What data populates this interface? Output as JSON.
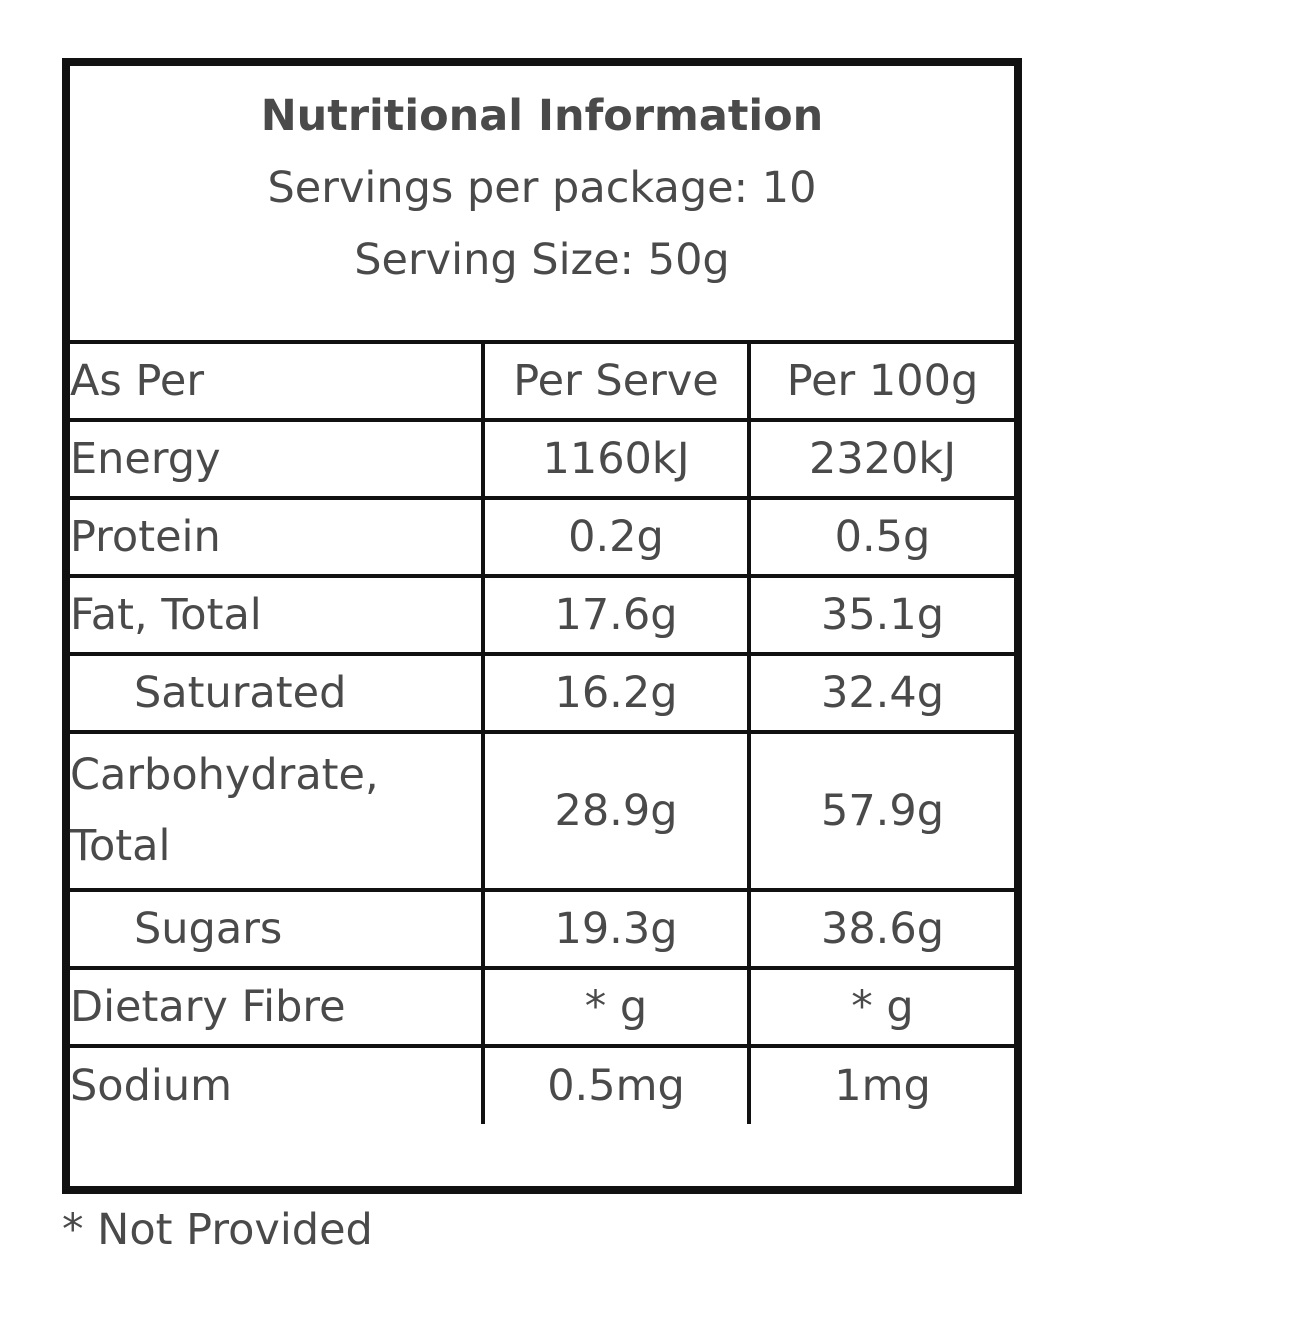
{
  "header": {
    "title": "Nutritional Information",
    "servings_per_package": "Servings per package: 10",
    "serving_size": "Serving Size: 50g"
  },
  "table": {
    "columns": [
      "As Per",
      "Per Serve",
      "Per 100g"
    ],
    "rows": [
      {
        "label": "Energy",
        "per_serve": "1160kJ",
        "per_100g": "2320kJ"
      },
      {
        "label": "Protein",
        "per_serve": "0.2g",
        "per_100g": "0.5g"
      },
      {
        "label": "Fat, Total",
        "per_serve": "17.6g",
        "per_100g": "35.1g"
      },
      {
        "label": "Saturated",
        "per_serve": "16.2g",
        "per_100g": "32.4g"
      },
      {
        "label": "Carbohydrate, Total",
        "per_serve": "28.9g",
        "per_100g": "57.9g"
      },
      {
        "label": "Sugars",
        "per_serve": "19.3g",
        "per_100g": "38.6g"
      },
      {
        "label": "Dietary Fibre",
        "per_serve": "* g",
        "per_100g": "* g"
      },
      {
        "label": "Sodium",
        "per_serve": "0.5mg",
        "per_100g": "1mg"
      }
    ]
  },
  "footnote": "* Not Provided"
}
